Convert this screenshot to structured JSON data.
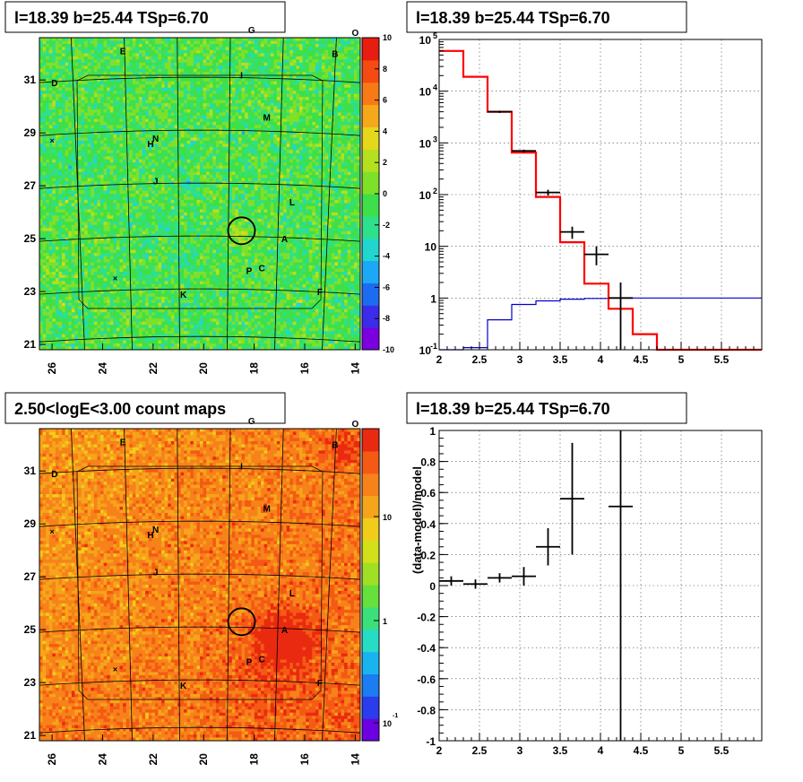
{
  "panels": {
    "tl_title": "l=18.39 b=25.44 TSp=6.70",
    "tr_title": "l=18.39 b=25.44 TSp=6.70",
    "bl_title": "2.50<logE<3.00 count maps",
    "br_title": "l=18.39 b=25.44 TSp=6.70"
  },
  "map_axes": {
    "x_ticks": [
      "26",
      "24",
      "22",
      "20",
      "18",
      "16",
      "14"
    ],
    "y_ticks": [
      "31",
      "29",
      "27",
      "25",
      "23",
      "21"
    ],
    "x_range": [
      26.5,
      13.8
    ],
    "y_range": [
      20.8,
      32.6
    ]
  },
  "source_labels": [
    {
      "name": "A",
      "l": 16.8,
      "b": 25.0
    },
    {
      "name": "B",
      "l": 14.8,
      "b": 32.0
    },
    {
      "name": "C",
      "l": 17.7,
      "b": 23.9
    },
    {
      "name": "D",
      "l": 25.9,
      "b": 30.9
    },
    {
      "name": "E",
      "l": 23.2,
      "b": 32.1
    },
    {
      "name": "F",
      "l": 15.4,
      "b": 23.0
    },
    {
      "name": "G",
      "l": 18.1,
      "b": 32.9
    },
    {
      "name": "H",
      "l": 22.1,
      "b": 28.6
    },
    {
      "name": "I",
      "l": 18.5,
      "b": 31.2
    },
    {
      "name": "J",
      "l": 21.9,
      "b": 27.2
    },
    {
      "name": "K",
      "l": 20.8,
      "b": 22.9
    },
    {
      "name": "L",
      "l": 16.5,
      "b": 26.4
    },
    {
      "name": "M",
      "l": 17.5,
      "b": 29.6
    },
    {
      "name": "N",
      "l": 21.9,
      "b": 28.8
    },
    {
      "name": "O",
      "l": 14.0,
      "b": 32.8
    },
    {
      "name": "P",
      "l": 18.2,
      "b": 23.8
    }
  ],
  "cross_markers": [
    {
      "l": 26.0,
      "b": 28.7
    },
    {
      "l": 23.5,
      "b": 23.5
    }
  ],
  "tl_colorbar": {
    "ticks": [
      "10",
      "8",
      "6",
      "4",
      "2",
      "0",
      "-2",
      "-4",
      "-6",
      "-8",
      "-10"
    ],
    "colors": [
      "#7a00e0",
      "#3a2ce8",
      "#1c6cf2",
      "#1ca8f5",
      "#22d6d0",
      "#2fe08a",
      "#3ee04a",
      "#7fe02a",
      "#b4e01f",
      "#e5d81a",
      "#f5a81a",
      "#f77a16",
      "#f54a12",
      "#e81c10"
    ]
  },
  "bl_colorbar": {
    "ticks": [
      "10",
      "1",
      "10-1"
    ],
    "tick_labels": [
      "10",
      "1",
      "10"
    ],
    "exp": "-1",
    "colors": [
      "#6c00e0",
      "#2a3cec",
      "#1c7cf2",
      "#19b4f0",
      "#26dcc6",
      "#3ce07a",
      "#66e03a",
      "#a0e024",
      "#d2e01a",
      "#f2cc1a",
      "#f6a41a",
      "#f7821a",
      "#f55a14",
      "#ea2a10"
    ]
  },
  "chart_data": [
    {
      "type": "line",
      "title": "l=18.39 b=25.44 TSp=6.70",
      "xlabel": "",
      "ylabel": "",
      "log_y": true,
      "xlim": [
        2,
        6
      ],
      "ylim": [
        0.1,
        100000
      ],
      "x_ticks": [
        "2",
        "2.5",
        "3",
        "3.5",
        "4",
        "4.5",
        "5",
        "5.5"
      ],
      "y_ticks": [
        "10^-1",
        "1",
        "10",
        "10^2",
        "10^3",
        "10^4",
        "10^5"
      ],
      "grid": true,
      "series": [
        {
          "color": "#ff0000",
          "bins": [
            [
              2.0,
              2.3,
              60000
            ],
            [
              2.3,
              2.6,
              19000
            ],
            [
              2.6,
              2.9,
              4000
            ],
            [
              2.9,
              3.2,
              650
            ],
            [
              3.2,
              3.5,
              90
            ],
            [
              3.5,
              3.8,
              12
            ],
            [
              3.8,
              4.1,
              1.9
            ],
            [
              4.1,
              4.4,
              0.62
            ],
            [
              4.4,
              4.7,
              0.2
            ],
            [
              4.7,
              6.0,
              0.1
            ]
          ]
        },
        {
          "color": "#0000cc",
          "bins": [
            [
              2.0,
              2.3,
              0.09
            ],
            [
              2.3,
              2.6,
              0.11
            ],
            [
              2.6,
              2.9,
              0.38
            ],
            [
              2.9,
              3.2,
              0.75
            ],
            [
              3.2,
              3.5,
              0.88
            ],
            [
              3.5,
              3.8,
              0.95
            ],
            [
              3.8,
              4.1,
              0.98
            ],
            [
              4.1,
              6.0,
              1.0
            ]
          ]
        },
        {
          "color": "#000000",
          "points": [
            {
              "x": 2.75,
              "xerr": 0.15,
              "y": 4000,
              "ylo": 3800,
              "yhi": 4200
            },
            {
              "x": 3.05,
              "xerr": 0.15,
              "y": 700,
              "ylo": 660,
              "yhi": 740
            },
            {
              "x": 3.35,
              "xerr": 0.15,
              "y": 110,
              "ylo": 96,
              "yhi": 124
            },
            {
              "x": 3.65,
              "xerr": 0.15,
              "y": 19,
              "ylo": 14,
              "yhi": 24
            },
            {
              "x": 3.95,
              "xerr": 0.15,
              "y": 7,
              "ylo": 4.3,
              "yhi": 10
            },
            {
              "x": 4.25,
              "xerr": 0.15,
              "y": 1,
              "ylo": 0.1,
              "yhi": 2
            }
          ]
        }
      ]
    },
    {
      "type": "scatter",
      "title": "l=18.39 b=25.44 TSp=6.70",
      "xlabel": "",
      "ylabel": "(data-model)/model",
      "xlim": [
        2,
        6
      ],
      "ylim": [
        -1,
        1
      ],
      "x_ticks": [
        "2",
        "2.5",
        "3",
        "3.5",
        "4",
        "4.5",
        "5",
        "5.5"
      ],
      "y_ticks": [
        "1",
        "0.8",
        "0.6",
        "0.4",
        "0.2",
        "0",
        "-0.2",
        "-0.4",
        "-0.6",
        "-0.8",
        "-1"
      ],
      "grid": true,
      "series": [
        {
          "color": "#000000",
          "points": [
            {
              "x": 2.15,
              "xerr": 0.15,
              "y": 0.03,
              "ylo": 0.0,
              "yhi": 0.06
            },
            {
              "x": 2.45,
              "xerr": 0.15,
              "y": 0.01,
              "ylo": -0.02,
              "yhi": 0.04
            },
            {
              "x": 2.75,
              "xerr": 0.15,
              "y": 0.05,
              "ylo": 0.02,
              "yhi": 0.08
            },
            {
              "x": 3.05,
              "xerr": 0.15,
              "y": 0.06,
              "ylo": 0.0,
              "yhi": 0.12
            },
            {
              "x": 3.35,
              "xerr": 0.15,
              "y": 0.25,
              "ylo": 0.13,
              "yhi": 0.37
            },
            {
              "x": 3.65,
              "xerr": 0.15,
              "y": 0.56,
              "ylo": 0.2,
              "yhi": 0.92
            },
            {
              "x": 4.25,
              "xerr": 0.15,
              "y": 0.51,
              "ylo": -1,
              "yhi": 1
            }
          ]
        }
      ]
    }
  ]
}
